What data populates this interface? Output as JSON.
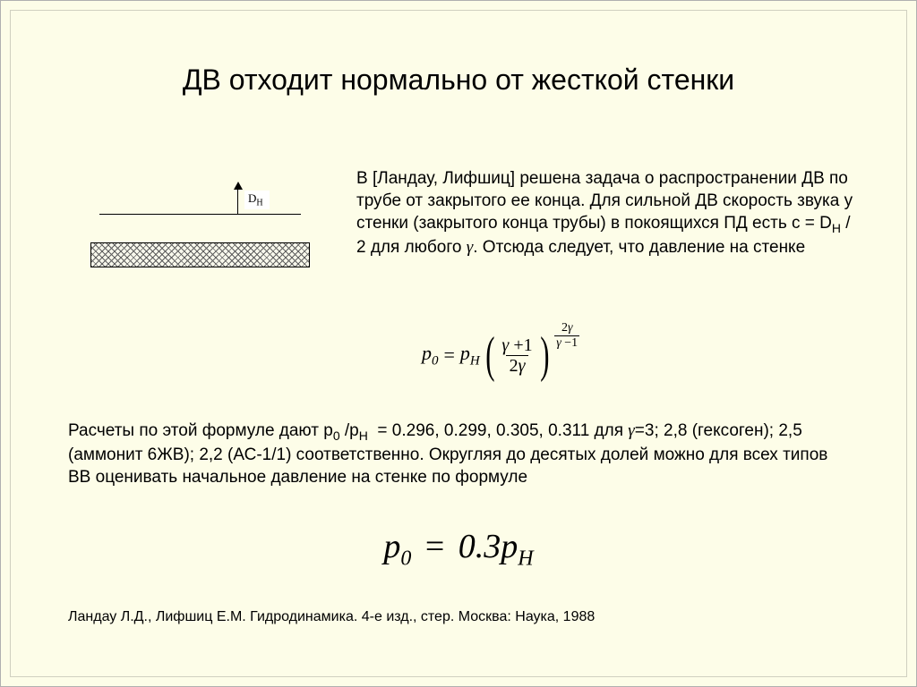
{
  "slide": {
    "background": "#fdfde8",
    "title": "ДВ отходит нормально от жесткой стенки",
    "diagram": {
      "label_html": "D<sub>H</sub>",
      "arrow_direction": "up",
      "bar_hatch_color": "#606060"
    },
    "paragraph1_html": "В [Ландау, Лифшиц] решена задача о распространении ДВ по трубе от закрытого ее конца. Для сильной ДВ скорость звука у стенки (закрытого конца трубы) в покоящихся ПД есть с = D<sub>H</sub> / 2 для любого <span class=\"g\">γ</span>. Отсюда следует, что давление на стенке",
    "formula1": {
      "lhs_html": "<span class=\"it\">p</span><sub>0</sub>",
      "rhs_coeff_html": "<span class=\"it\">p</span><sub>H</sub>",
      "fraction_numer": "γ + 1",
      "fraction_denom": "2γ",
      "exponent_numer": "2γ",
      "exponent_denom": "γ − 1"
    },
    "paragraph2_html": "Расчеты по этой формуле дают p<sub>0</sub> /p<sub>H</sub> &nbsp;= 0.296, 0.299, 0.305, 0.311 для <span class=\"g\">γ</span>=3; 2,8 (гексоген); 2,5 (аммонит 6ЖВ); 2,2 (АС-1/1) соответственно. Округляя до десятых долей можно для всех типов ВВ оценивать начальное давление на стенке по формуле",
    "formula2": {
      "lhs_html": "p<sub>0</sub>",
      "rhs_html": "0.3<span style=\"font-style:italic\">p</span><sub>H</sub>",
      "operator": "="
    },
    "citation": "Ландау Л.Д., Лифшиц Е.М. Гидродинамика. 4-е изд., стер. Москва: Наука, 1988"
  },
  "values": {
    "ratios": [
      0.296,
      0.299,
      0.305,
      0.311
    ],
    "gammas": [
      3,
      2.8,
      2.5,
      2.2
    ],
    "approx_ratio": 0.3
  },
  "style": {
    "title_fontsize": 32,
    "body_fontsize": 19,
    "formula2_fontsize": 38,
    "citation_fontsize": 16,
    "text_color": "#000000"
  }
}
